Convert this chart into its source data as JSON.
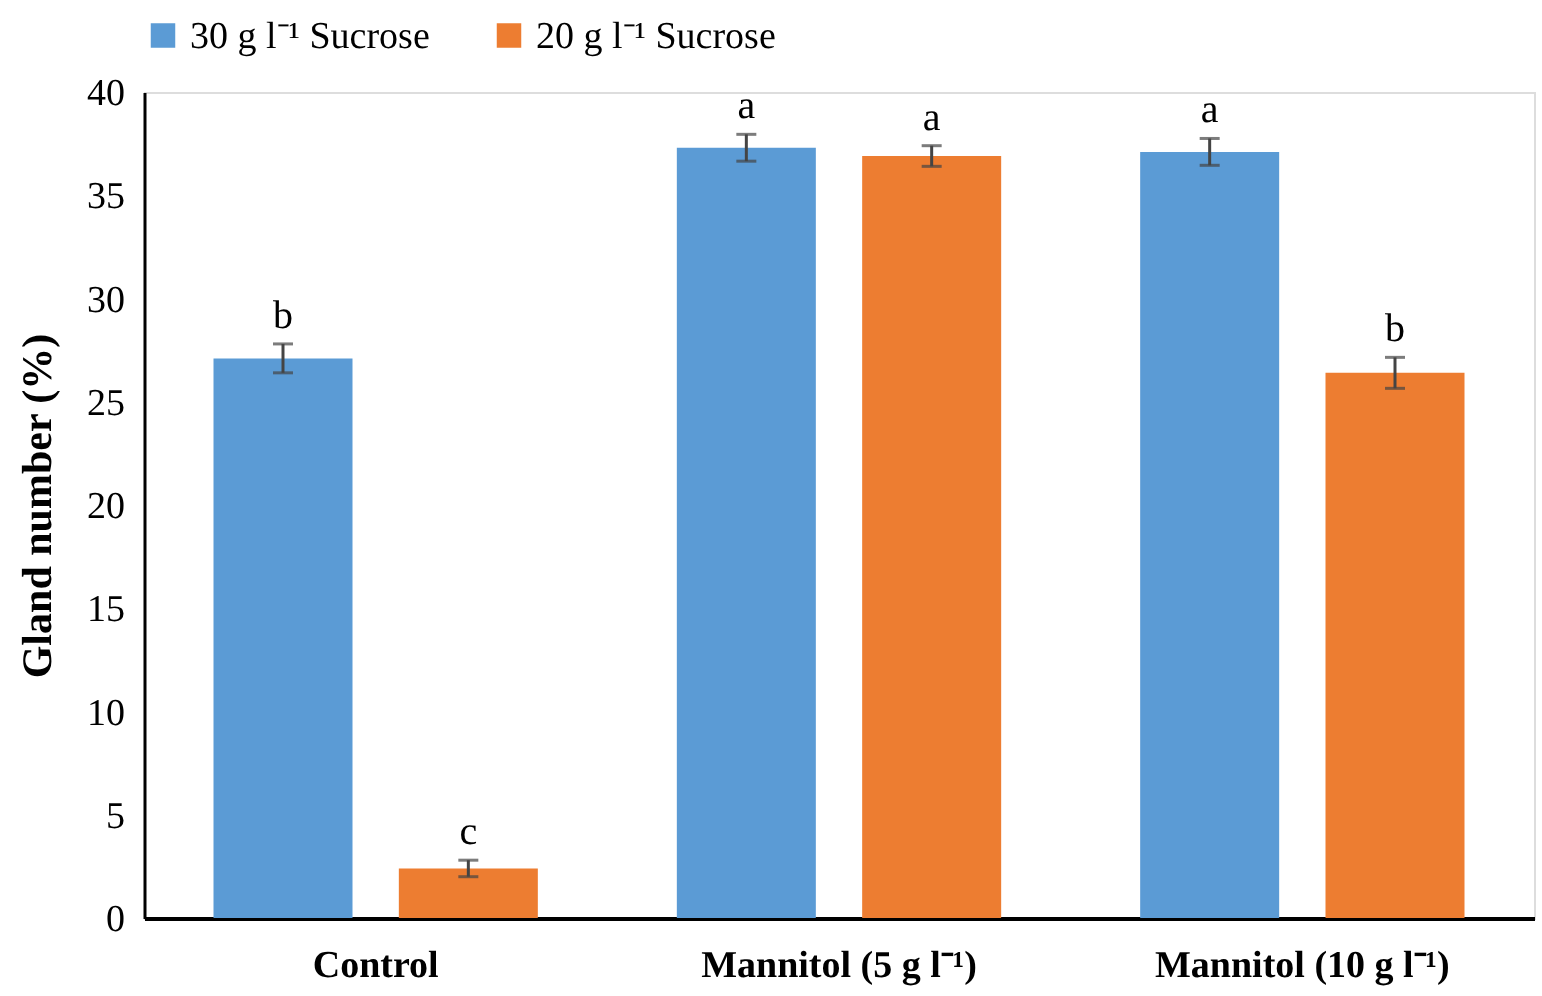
{
  "chart_data": {
    "type": "bar",
    "ylabel": "Gland number (%)",
    "categories": [
      "Control",
      "Mannitol (5 g l⁻¹)",
      "Mannitol (10 g l⁻¹)"
    ],
    "series": [
      {
        "name": "30 g l⁻¹ Sucrose",
        "color": "#5b9bd5",
        "values": [
          27.1,
          37.3,
          37.1
        ],
        "errors": [
          0.7,
          0.65,
          0.65
        ],
        "value_labels": [
          "b",
          "a",
          "a"
        ]
      },
      {
        "name": "20 g l⁻¹ Sucrose",
        "color": "#ed7d31",
        "values": [
          2.4,
          36.9,
          26.4
        ],
        "errors": [
          0.4,
          0.5,
          0.75
        ],
        "value_labels": [
          "c",
          "a",
          "b"
        ]
      }
    ],
    "ylim": [
      0,
      40
    ],
    "yticks": [
      0,
      5,
      10,
      15,
      20,
      25,
      30,
      35,
      40
    ],
    "grid": false,
    "legend": "top"
  }
}
